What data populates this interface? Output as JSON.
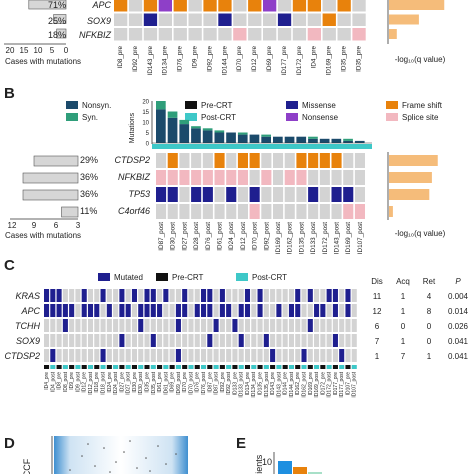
{
  "panel_a": {
    "freq_labels": [
      "71%",
      "25%",
      "18%"
    ],
    "genes": [
      "APC",
      "SOX9",
      "NFKBIZ"
    ],
    "x_ticks": [
      "20",
      "15",
      "10",
      "5",
      "0"
    ],
    "x_axis_label": "Cases with mutations",
    "qval_axis_label": "-log₁₀(q value)",
    "samples": [
      "ID8_pre",
      "ID92_pre",
      "ID143_pre",
      "ID134_pre",
      "ID76_pre",
      "ID9_pre",
      "ID92_pre",
      "ID144_pre",
      "ID70_pre",
      "ID12_pre",
      "ID69_pre",
      "ID177_pre",
      "ID172_pre",
      "ID4_pre",
      "ID169_pre",
      "ID35_pre",
      "ID35_pre"
    ]
  },
  "panel_b": {
    "letter": "B",
    "legend": {
      "nonsyn": "Nonsyn.",
      "syn": "Syn.",
      "pre": "Pre-CRT",
      "post": "Post-CRT",
      "missense": "Missense",
      "nonsense": "Nonsense",
      "frameshift": "Frame shift",
      "splice": "Splice site"
    },
    "tmb_axis_label": "Mutations",
    "tmb_ticks": [
      "20",
      "15",
      "10",
      "5",
      "0"
    ],
    "freq_labels": [
      "29%",
      "36%",
      "36%",
      "11%"
    ],
    "genes": [
      "CTDSP2",
      "NFKBIZ",
      "TP53",
      "C4orf46"
    ],
    "x_ticks": [
      "12",
      "9",
      "6",
      "3"
    ],
    "x_axis_label": "Cases with mutations",
    "qval_axis_label": "-log₁₀(q value)",
    "samples": [
      "ID87_post",
      "ID30_post",
      "ID27_post",
      "ID28_post",
      "ID76_post",
      "ID61_post",
      "ID24_post",
      "ID12_post",
      "ID70_post",
      "ID92_post",
      "ID169_post",
      "ID162_post",
      "ID135_post",
      "ID133_post",
      "ID172_post",
      "ID143_post",
      "ID169_post",
      "ID107_post"
    ]
  },
  "panel_c": {
    "letter": "C",
    "legend": {
      "mutated": "Mutated",
      "pre": "Pre-CRT",
      "post": "Post-CRT"
    },
    "genes": [
      "KRAS",
      "APC",
      "TCHH",
      "SOX9",
      "CTDSP2"
    ],
    "stats_headers": [
      "Dis",
      "Acq",
      "Ret",
      "P"
    ],
    "stats_rows": [
      [
        "11",
        "1",
        "4",
        "0.004"
      ],
      [
        "12",
        "1",
        "8",
        "0.014"
      ],
      [
        "6",
        "0",
        "0",
        "0.026"
      ],
      [
        "7",
        "1",
        "0",
        "0.041"
      ],
      [
        "1",
        "7",
        "1",
        "0.041"
      ]
    ],
    "samples": [
      "ID4_pre",
      "ID4_post",
      "ID8_pre",
      "ID8_post",
      "ID9_pre",
      "ID9_post",
      "ID12_pre",
      "ID12_post",
      "ID18_pre",
      "ID18_post",
      "ID24_pre",
      "ID24_post",
      "ID27_pre",
      "ID27_post",
      "ID30_pre",
      "ID30_post",
      "ID35_pre",
      "ID35_post",
      "ID61_pre",
      "ID61_post",
      "ID69_pre",
      "ID69_post",
      "ID70_pre",
      "ID70_post",
      "ID76_pre",
      "ID76_post",
      "ID87_pre",
      "ID87_post",
      "ID92_pre",
      "ID92_post",
      "ID133_pre",
      "ID133_post",
      "ID134_pre",
      "ID134_post",
      "ID135_pre",
      "ID135_post",
      "ID143_pre",
      "ID143_post",
      "ID144_pre",
      "ID144_post",
      "ID162_pre",
      "ID162_post",
      "ID169_pre",
      "ID169_post",
      "ID172_pre",
      "ID172_post",
      "ID177_pre",
      "ID177_post",
      "ID107_pre",
      "ID107_post"
    ]
  },
  "panel_d": {
    "letter": "D",
    "y_axis_label": "CCF"
  },
  "panel_e": {
    "letter": "E",
    "y_axis_label": "atients",
    "y_tick": "10"
  },
  "colors": {
    "missense": "#1f1f8f",
    "nonsense": "#8e3fc8",
    "frameshift": "#e8820c",
    "splice": "#f2b8c0",
    "empty": "#d3d3d3",
    "nonsyn": "#1b4a6b",
    "syn": "#2f9e7a",
    "pre": "#111111",
    "post": "#3ec8c8",
    "bar_gray": "#d6d6d6",
    "qbar": "#f5bc7a",
    "mutated": "#1f1f8f"
  },
  "chart_data": [
    {
      "type": "heatmap",
      "panel": "A",
      "genes": [
        "APC",
        "SOX9",
        "NFKBIZ"
      ],
      "frequency_pct": [
        71,
        25,
        18
      ],
      "cases_with_mutations": [
        12,
        4,
        3
      ],
      "neg_log10_q": [
        8.5,
        4.6,
        1.2
      ],
      "matrix": [
        [
          "F",
          "X",
          "F",
          "N",
          "F",
          "X",
          "F",
          "F",
          "X",
          "F",
          "N",
          "X",
          "F",
          "F",
          "X",
          "F",
          "X"
        ],
        [
          "X",
          "X",
          "M",
          "X",
          "X",
          "X",
          "X",
          "M",
          "X",
          "X",
          "X",
          "M",
          "X",
          "X",
          "F",
          "X",
          "X"
        ],
        [
          "X",
          "X",
          "X",
          "X",
          "X",
          "X",
          "X",
          "X",
          "S",
          "X",
          "X",
          "X",
          "X",
          "S",
          "X",
          "X",
          "S"
        ]
      ]
    },
    {
      "type": "heatmap",
      "panel": "B",
      "tmb_nonsyn": [
        16,
        12,
        9,
        7,
        6,
        5,
        5,
        4,
        4,
        3,
        3,
        3,
        3,
        2,
        2,
        2,
        1,
        1
      ],
      "tmb_syn": [
        4,
        3,
        2,
        1,
        1,
        1,
        0,
        1,
        0,
        1,
        0,
        0,
        0,
        1,
        0,
        0,
        1,
        0
      ],
      "genes": [
        "CTDSP2",
        "NFKBIZ",
        "TP53",
        "C4orf46"
      ],
      "frequency_pct": [
        29,
        36,
        36,
        11
      ],
      "cases_with_mutations": [
        8,
        10,
        10,
        3
      ],
      "neg_log10_q": [
        7.5,
        6.6,
        6.2,
        0.6
      ],
      "matrix": [
        [
          "X",
          "F",
          "X",
          "X",
          "X",
          "F",
          "X",
          "F",
          "F",
          "X",
          "X",
          "X",
          "F",
          "F",
          "F",
          "F",
          "X",
          "X"
        ],
        [
          "S",
          "S",
          "S",
          "S",
          "S",
          "S",
          "S",
          "S",
          "X",
          "S",
          "X",
          "S",
          "S",
          "X",
          "X",
          "X",
          "X",
          "X"
        ],
        [
          "M",
          "M",
          "X",
          "M",
          "M",
          "X",
          "M",
          "X",
          "M",
          "X",
          "X",
          "X",
          "X",
          "M",
          "X",
          "M",
          "M",
          "X"
        ],
        [
          "X",
          "X",
          "X",
          "X",
          "X",
          "X",
          "X",
          "X",
          "S",
          "X",
          "X",
          "X",
          "X",
          "X",
          "X",
          "X",
          "S",
          "S"
        ]
      ]
    },
    {
      "type": "heatmap",
      "panel": "C",
      "genes": [
        "KRAS",
        "APC",
        "TCHH",
        "SOX9",
        "CTDSP2"
      ],
      "matrix": [
        [
          1,
          1,
          1,
          0,
          0,
          0,
          1,
          0,
          0,
          1,
          0,
          0,
          1,
          0,
          1,
          0,
          1,
          1,
          0,
          1,
          0,
          0,
          1,
          0,
          0,
          1,
          1,
          0,
          1,
          0,
          0,
          0,
          1,
          0,
          1,
          0,
          0,
          0,
          0,
          0,
          1,
          0,
          1,
          0,
          0,
          1,
          1,
          0,
          1,
          0
        ],
        [
          1,
          1,
          1,
          1,
          1,
          0,
          1,
          1,
          1,
          0,
          1,
          0,
          1,
          1,
          0,
          1,
          1,
          1,
          1,
          0,
          0,
          1,
          1,
          0,
          1,
          1,
          1,
          0,
          1,
          1,
          0,
          1,
          1,
          0,
          1,
          0,
          0,
          1,
          0,
          1,
          1,
          0,
          0,
          1,
          1,
          0,
          1,
          0,
          1,
          0
        ],
        [
          0,
          0,
          0,
          1,
          0,
          0,
          0,
          0,
          0,
          0,
          0,
          0,
          0,
          0,
          0,
          1,
          0,
          0,
          0,
          0,
          0,
          1,
          0,
          0,
          0,
          0,
          0,
          1,
          0,
          0,
          1,
          0,
          0,
          0,
          0,
          0,
          0,
          0,
          0,
          0,
          0,
          0,
          1,
          0,
          0,
          0,
          0,
          0,
          0,
          0
        ],
        [
          0,
          0,
          0,
          0,
          0,
          0,
          0,
          0,
          0,
          0,
          0,
          0,
          1,
          0,
          0,
          0,
          0,
          1,
          0,
          0,
          0,
          0,
          0,
          0,
          0,
          0,
          1,
          0,
          0,
          0,
          0,
          1,
          0,
          0,
          0,
          1,
          0,
          0,
          0,
          0,
          0,
          0,
          0,
          0,
          0,
          0,
          1,
          0,
          0,
          0
        ],
        [
          0,
          1,
          0,
          0,
          0,
          0,
          0,
          0,
          0,
          1,
          0,
          0,
          0,
          0,
          0,
          0,
          0,
          0,
          0,
          0,
          0,
          1,
          0,
          0,
          0,
          0,
          0,
          0,
          0,
          0,
          0,
          0,
          0,
          0,
          0,
          0,
          1,
          0,
          0,
          0,
          0,
          1,
          0,
          0,
          0,
          0,
          0,
          1,
          0,
          0
        ]
      ]
    }
  ]
}
